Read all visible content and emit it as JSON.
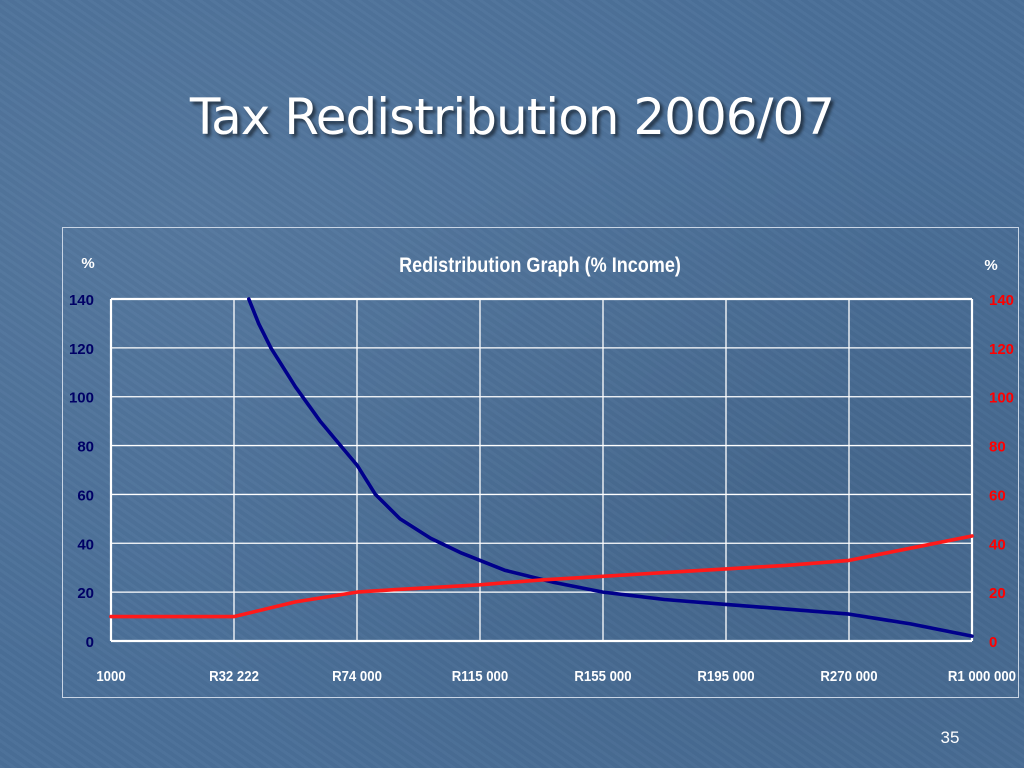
{
  "slide": {
    "title": "Tax Redistribution 2006/07",
    "page_number": "35"
  },
  "colors": {
    "background": "#4a6f98",
    "left_axis": "#000066",
    "right_axis": "#ff0000",
    "series_tax": "#00008b",
    "series_income": "#ff1a1a",
    "grid": "#ffffff"
  },
  "chart_data": {
    "type": "line",
    "title": "Redistribution Graph (% Income)",
    "ylabel_left": "%",
    "ylabel_right": "%",
    "categories": [
      "1000",
      "R32 222",
      "R74 000",
      "R115 000",
      "R155 000",
      "R195 000",
      "R270 000",
      "R1 000 000"
    ],
    "ylim": [
      0,
      140
    ],
    "yticks": [
      "0",
      "20",
      "40",
      "60",
      "80",
      "100",
      "120",
      "140"
    ],
    "grid": true,
    "series": [
      {
        "axis": "left",
        "color": "#00008b",
        "x": [
          1.12,
          1.2,
          1.3,
          1.5,
          1.7,
          1.9,
          2.0,
          2.15,
          2.35,
          2.6,
          2.85,
          3.2,
          3.6,
          4.0,
          4.5,
          5.0,
          5.5,
          6.0,
          6.5,
          7.0
        ],
        "values": [
          140,
          130,
          120,
          104,
          90,
          78,
          72,
          60,
          50,
          42,
          36,
          29,
          24,
          20,
          17,
          15,
          13,
          11,
          7,
          2
        ]
      },
      {
        "axis": "right",
        "color": "#ff1a1a",
        "x": [
          0,
          1,
          1.5,
          2,
          2.3,
          3,
          3.5,
          4,
          4.5,
          5,
          5.5,
          6,
          6.5,
          7
        ],
        "values": [
          10,
          10,
          16,
          20,
          21,
          23,
          25,
          26.5,
          28,
          29.5,
          31,
          33,
          38,
          43
        ]
      }
    ]
  }
}
